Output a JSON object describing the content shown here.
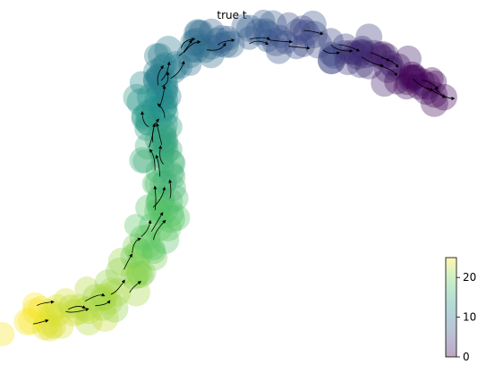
{
  "chart_data": {
    "type": "scatter",
    "title": "true t",
    "xlabel": "",
    "ylabel": "",
    "axes_visible": false,
    "overlay": "velocity-streamlines",
    "colormap": "viridis",
    "point_alpha": 0.35,
    "colorbar": {
      "min": 0,
      "max": 25,
      "ticks": [
        0,
        10,
        20
      ],
      "tick_labels": [
        "0",
        "10",
        "20"
      ],
      "placement": "bottom-right"
    },
    "trajectory": {
      "description_points": [
        {
          "x": 0.01,
          "y": 0.06,
          "t": 25
        },
        {
          "x": 0.07,
          "y": 0.08,
          "t": 24
        },
        {
          "x": 0.14,
          "y": 0.09,
          "t": 23
        },
        {
          "x": 0.21,
          "y": 0.12,
          "t": 22
        },
        {
          "x": 0.26,
          "y": 0.19,
          "t": 21
        },
        {
          "x": 0.29,
          "y": 0.27,
          "t": 20
        },
        {
          "x": 0.32,
          "y": 0.34,
          "t": 19
        },
        {
          "x": 0.35,
          "y": 0.41,
          "t": 18
        },
        {
          "x": 0.35,
          "y": 0.48,
          "t": 17
        },
        {
          "x": 0.34,
          "y": 0.56,
          "t": 16
        },
        {
          "x": 0.33,
          "y": 0.62,
          "t": 15
        },
        {
          "x": 0.34,
          "y": 0.68,
          "t": 14
        },
        {
          "x": 0.32,
          "y": 0.74,
          "t": 13
        },
        {
          "x": 0.33,
          "y": 0.8,
          "t": 12
        },
        {
          "x": 0.35,
          "y": 0.86,
          "t": 11
        },
        {
          "x": 0.38,
          "y": 0.91,
          "t": 10
        },
        {
          "x": 0.43,
          "y": 0.96,
          "t": 9
        },
        {
          "x": 0.5,
          "y": 0.99,
          "t": 8
        },
        {
          "x": 0.58,
          "y": 0.99,
          "t": 7
        },
        {
          "x": 0.66,
          "y": 0.98,
          "t": 6
        },
        {
          "x": 0.74,
          "y": 0.96,
          "t": 5
        },
        {
          "x": 0.81,
          "y": 0.93,
          "t": 4
        },
        {
          "x": 0.86,
          "y": 0.9,
          "t": 3
        },
        {
          "x": 0.9,
          "y": 0.87,
          "t": 2
        },
        {
          "x": 0.95,
          "y": 0.83,
          "t": 1
        },
        {
          "x": 0.99,
          "y": 0.8,
          "t": 0
        }
      ]
    }
  }
}
